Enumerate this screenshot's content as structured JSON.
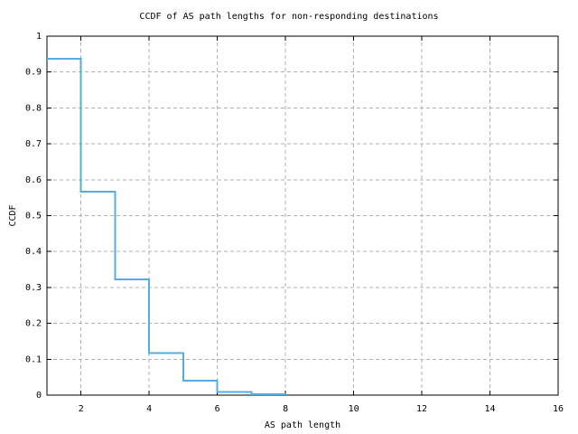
{
  "page": {
    "background_color": "#ffffff",
    "text_color": "#000000"
  },
  "chart_data": {
    "type": "line",
    "style": "step-ccdf",
    "title": "CCDF of AS path lengths for non-responding destinations",
    "xlabel": "AS path length",
    "ylabel": "CCDF",
    "xlim": [
      1,
      16
    ],
    "ylim": [
      0,
      1
    ],
    "xticks": [
      2,
      4,
      6,
      8,
      10,
      12,
      14,
      16
    ],
    "yticks": [
      0,
      0.1,
      0.2,
      0.3,
      0.4,
      0.5,
      0.6,
      0.7,
      0.8,
      0.9,
      1
    ],
    "ytick_labels": [
      "0",
      "0.1",
      "0.2",
      "0.3",
      "0.4",
      "0.5",
      "0.6",
      "0.7",
      "0.8",
      "0.9",
      "1"
    ],
    "grid": true,
    "legend": false,
    "line_color": "#56ace0",
    "grid_color": "#b0b0b0",
    "frame_color": "#000000",
    "steps": [
      {
        "x_start": 1,
        "x_end": 2,
        "y": 0.937
      },
      {
        "x_start": 2,
        "x_end": 3,
        "y": 0.567
      },
      {
        "x_start": 3,
        "x_end": 4,
        "y": 0.322
      },
      {
        "x_start": 4,
        "x_end": 5,
        "y": 0.117
      },
      {
        "x_start": 5,
        "x_end": 6,
        "y": 0.04
      },
      {
        "x_start": 6,
        "x_end": 7,
        "y": 0.009
      },
      {
        "x_start": 7,
        "x_end": 8,
        "y": 0.002
      }
    ],
    "terminal_x": 8,
    "terminal_y": 0
  }
}
